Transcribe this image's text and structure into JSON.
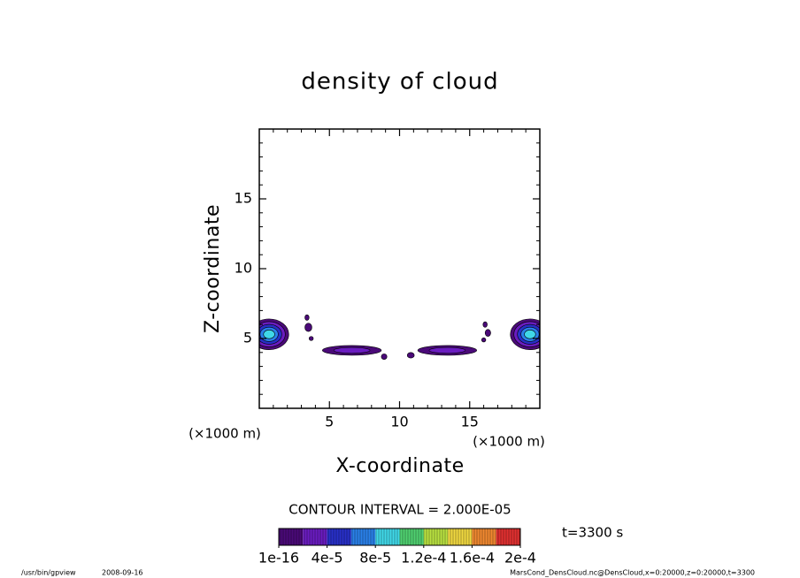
{
  "chart_data": {
    "type": "contour",
    "title": "density of cloud",
    "xlabel": "X-coordinate",
    "ylabel": "Z-coordinate",
    "xunit": "(×1000 m)",
    "yunit": "(×1000 m)",
    "xlim": [
      0,
      20
    ],
    "ylim": [
      0,
      20
    ],
    "xticks": [
      5,
      10,
      15
    ],
    "yticks": [
      5,
      10,
      15
    ],
    "xminorticks": [
      1,
      2,
      3,
      4,
      6,
      7,
      8,
      9,
      11,
      12,
      13,
      14,
      16,
      17,
      18,
      19
    ],
    "yminorticks": [
      1,
      2,
      3,
      4,
      6,
      7,
      8,
      9,
      11,
      12,
      13,
      14,
      16,
      17,
      18,
      19
    ],
    "contour_interval": "CONTOUR INTERVAL = 2.000E-05",
    "time_label": "t=3300 s",
    "levels": {
      "lim": [
        0,
        0.0002
      ],
      "ticks": [
        {
          "value": 1e-16,
          "label": "1e-16"
        },
        {
          "value": 4e-05,
          "label": "4e-5"
        },
        {
          "value": 8e-05,
          "label": "8e-5"
        },
        {
          "value": 0.00012,
          "label": "1.2e-4"
        },
        {
          "value": 0.00016,
          "label": "1.6e-4"
        },
        {
          "value": 0.0002,
          "label": "2e-4"
        }
      ],
      "colors": [
        "#4a0a78",
        "#6a1cc0",
        "#2830c8",
        "#2a80e8",
        "#40d8e8",
        "#50d070",
        "#b8e040",
        "#f0d840",
        "#f08830",
        "#e03030"
      ]
    },
    "blobs": [
      {
        "x": 0.7,
        "z": 5.3,
        "rx": 1.4,
        "rz": 1.1,
        "value": 9e-05
      },
      {
        "x": 19.3,
        "z": 5.3,
        "rx": 1.4,
        "rz": 1.1,
        "value": 9e-05
      },
      {
        "x": 6.6,
        "z": 4.15,
        "rx": 2.1,
        "rz": 0.35,
        "value": 3e-05
      },
      {
        "x": 13.4,
        "z": 4.15,
        "rx": 2.1,
        "rz": 0.35,
        "value": 3e-05
      },
      {
        "x": 3.4,
        "z": 6.5,
        "rx": 0.15,
        "rz": 0.2,
        "value": 1e-05
      },
      {
        "x": 3.5,
        "z": 5.8,
        "rx": 0.25,
        "rz": 0.3,
        "value": 1e-05
      },
      {
        "x": 3.7,
        "z": 5.0,
        "rx": 0.15,
        "rz": 0.15,
        "value": 1e-05
      },
      {
        "x": 16.1,
        "z": 6.0,
        "rx": 0.15,
        "rz": 0.2,
        "value": 1e-05
      },
      {
        "x": 16.3,
        "z": 5.4,
        "rx": 0.2,
        "rz": 0.25,
        "value": 1e-05
      },
      {
        "x": 16.0,
        "z": 4.9,
        "rx": 0.15,
        "rz": 0.15,
        "value": 1e-05
      },
      {
        "x": 8.9,
        "z": 3.7,
        "rx": 0.2,
        "rz": 0.2,
        "value": 1e-05
      },
      {
        "x": 10.8,
        "z": 3.8,
        "rx": 0.25,
        "rz": 0.2,
        "value": 1e-05
      }
    ]
  },
  "footer": {
    "program": "/usr/bin/gpview",
    "date": "2008-09-16",
    "source": "MarsCond_DensCloud.nc@DensCloud,x=0:20000,z=0:20000,t=3300"
  }
}
